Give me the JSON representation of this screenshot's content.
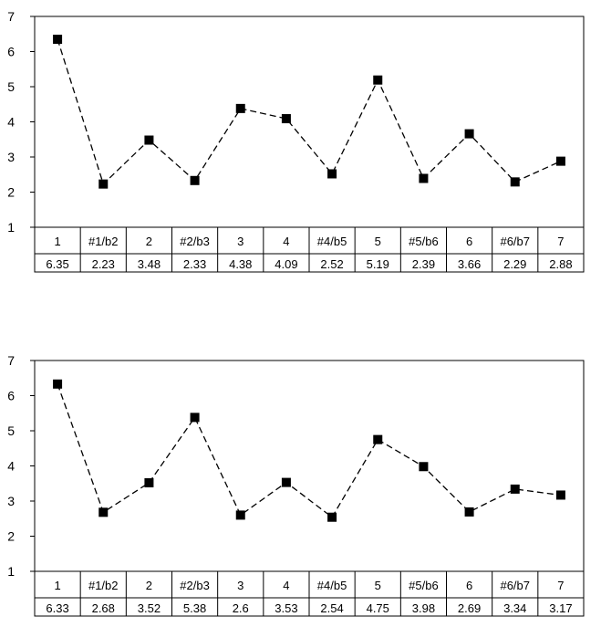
{
  "chart_data": [
    {
      "type": "line",
      "categories": [
        "1",
        "#1/b2",
        "2",
        "#2/b3",
        "3",
        "4",
        "#4/b5",
        "5",
        "#5/b6",
        "6",
        "#6/b7",
        "7"
      ],
      "series": [
        {
          "values": [
            6.35,
            2.23,
            3.48,
            2.33,
            4.38,
            4.09,
            2.52,
            5.19,
            2.39,
            3.66,
            2.29,
            2.88
          ]
        }
      ],
      "value_labels": [
        "6.35",
        "2.23",
        "3.48",
        "2.33",
        "4.38",
        "4.09",
        "2.52",
        "5.19",
        "2.39",
        "3.66",
        "2.29",
        "2.88"
      ],
      "yticks": [
        "1",
        "2",
        "3",
        "4",
        "5",
        "6",
        "7"
      ],
      "ylim": [
        1,
        7
      ],
      "line_style": "dashed",
      "marker": "square",
      "grid": false
    },
    {
      "type": "line",
      "categories": [
        "1",
        "#1/b2",
        "2",
        "#2/b3",
        "3",
        "4",
        "#4/b5",
        "5",
        "#5/b6",
        "6",
        "#6/b7",
        "7"
      ],
      "series": [
        {
          "values": [
            6.33,
            2.68,
            3.52,
            5.38,
            2.6,
            3.53,
            2.54,
            4.75,
            3.98,
            2.69,
            3.34,
            3.17
          ]
        }
      ],
      "value_labels": [
        "6.33",
        "2.68",
        "3.52",
        "5.38",
        "2.6",
        "3.53",
        "2.54",
        "4.75",
        "3.98",
        "2.69",
        "3.34",
        "3.17"
      ],
      "yticks": [
        "1",
        "2",
        "3",
        "4",
        "5",
        "6",
        "7"
      ],
      "ylim": [
        1,
        7
      ],
      "line_style": "dashed",
      "marker": "square",
      "grid": false
    }
  ]
}
